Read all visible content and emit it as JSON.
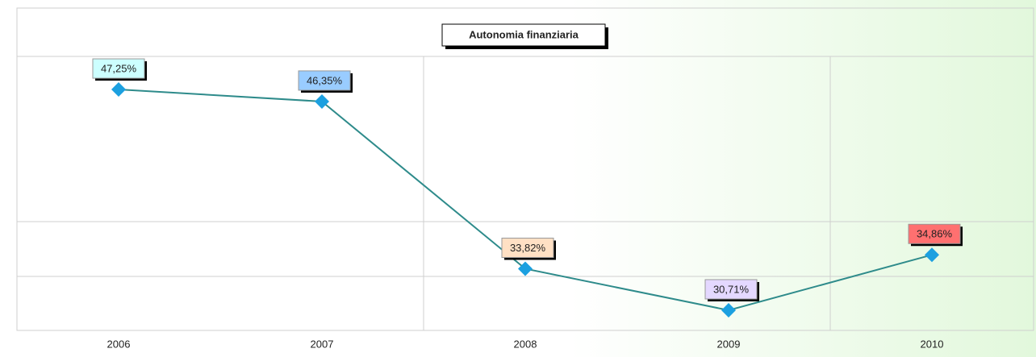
{
  "chart_data": {
    "type": "line",
    "title": "Autonomia finanziaria",
    "categories": [
      "2006",
      "2007",
      "2008",
      "2009",
      "2010"
    ],
    "series": [
      {
        "values": [
          47.25,
          46.35,
          33.82,
          30.71,
          34.86
        ],
        "value_labels": [
          "47,25%",
          "46,35%",
          "33,82%",
          "30,71%",
          "34,86%"
        ],
        "color": "#2e8b8b",
        "marker_color": "#1ca0e0"
      }
    ],
    "label_colors": [
      "#ccffff",
      "#99ccff",
      "#ffe0c4",
      "#e4d8ff",
      "#ff7070"
    ],
    "ylim": [
      29.2,
      53.35
    ]
  }
}
